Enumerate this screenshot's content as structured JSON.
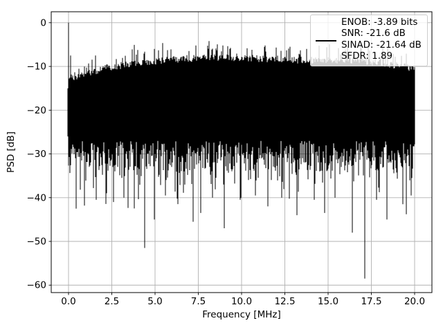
{
  "chart_data": {
    "type": "line",
    "title": "",
    "xlabel": "Frequency [MHz]",
    "ylabel": "PSD [dB]",
    "xlim": [
      -1,
      21
    ],
    "ylim": [
      -61.7,
      2.5
    ],
    "grid": true,
    "grid_color": "#b0b0b0",
    "frame_color": "#000000",
    "background_color": "#ffffff",
    "xticks": {
      "values": [
        0,
        2.5,
        5,
        7.5,
        10,
        12.5,
        15,
        17.5,
        20
      ],
      "labels": [
        "0.0",
        "2.5",
        "5.0",
        "7.5",
        "10.0",
        "12.5",
        "15.0",
        "17.5",
        "20.0"
      ]
    },
    "yticks": {
      "values": [
        0,
        -10,
        -20,
        -30,
        -40,
        -50,
        -60
      ],
      "labels": [
        "0",
        "−10",
        "−20",
        "−30",
        "−40",
        "−50",
        "−60"
      ]
    },
    "legend": {
      "position": "upper right",
      "handle_color": "#000000",
      "lines": [
        "ENOB: -3.89 bits",
        "SNR: -21.6 dB",
        "SINAD: -21.64 dB",
        "SFDR: 1.89"
      ]
    },
    "metrics": {
      "enob_bits": -3.89,
      "snr_db": -21.6,
      "sinad_db": -21.64,
      "sfdr": 1.89
    },
    "signal": {
      "name": "psd-noise-trace",
      "color": "#000000",
      "freq_range_mhz": [
        0,
        20
      ],
      "dc_peak": {
        "freq": 0,
        "psd_db": 0
      },
      "dc_shoulder": {
        "freq": 0.08,
        "psd_db": -7.5
      },
      "random_seed": 1337,
      "top_envelope_points": [
        [
          0,
          -13.5
        ],
        [
          0.5,
          -13.0
        ],
        [
          1,
          -12.5
        ],
        [
          2,
          -11.3
        ],
        [
          3,
          -10.6
        ],
        [
          4,
          -10.0
        ],
        [
          5,
          -9.6
        ],
        [
          6,
          -9.2
        ],
        [
          7,
          -9.0
        ],
        [
          8,
          -8.8
        ],
        [
          9,
          -8.8
        ],
        [
          10,
          -8.9
        ],
        [
          11,
          -9.0
        ],
        [
          12,
          -9.1
        ],
        [
          13,
          -9.3
        ],
        [
          14,
          -9.4
        ],
        [
          15,
          -9.4
        ],
        [
          16,
          -9.3
        ],
        [
          17,
          -9.6
        ],
        [
          18,
          -10.0
        ],
        [
          19,
          -10.6
        ],
        [
          20,
          -11.2
        ]
      ],
      "dense_floor_db_range": [
        -27,
        -34
      ],
      "spike_peaks": [
        [
          5.2,
          -6.3
        ],
        [
          5.9,
          -6.1
        ],
        [
          7.35,
          -5.2
        ],
        [
          8.1,
          -4.2
        ],
        [
          8.5,
          -5.9
        ],
        [
          9.3,
          -6.0
        ],
        [
          10.6,
          -6.2
        ],
        [
          11.4,
          -6.6
        ],
        [
          12.8,
          -5.5
        ],
        [
          13.4,
          -6.3
        ],
        [
          14.9,
          -5.6
        ],
        [
          15.6,
          -5.8
        ],
        [
          16.1,
          -5.3
        ],
        [
          16.9,
          -5.9
        ],
        [
          18.2,
          -6.9
        ]
      ],
      "deep_dips": [
        [
          0.45,
          -42.5
        ],
        [
          0.9,
          -41.8
        ],
        [
          1.6,
          -40.5
        ],
        [
          2.2,
          -39.0
        ],
        [
          2.6,
          -41.0
        ],
        [
          3.2,
          -40.0
        ],
        [
          3.8,
          -39.5
        ],
        [
          4.4,
          -51.5
        ],
        [
          4.95,
          -45.0
        ],
        [
          5.6,
          -39.5
        ],
        [
          6.3,
          -40.5
        ],
        [
          7.2,
          -45.5
        ],
        [
          7.65,
          -43.5
        ],
        [
          8.3,
          -40.0
        ],
        [
          9.0,
          -47.0
        ],
        [
          9.9,
          -40.5
        ],
        [
          10.8,
          -39.5
        ],
        [
          11.5,
          -42.0
        ],
        [
          12.3,
          -40.0
        ],
        [
          13.2,
          -44.0
        ],
        [
          14.2,
          -40.5
        ],
        [
          14.8,
          -43.5
        ],
        [
          15.4,
          -40.0
        ],
        [
          16.4,
          -48.0
        ],
        [
          17.1,
          -58.5
        ],
        [
          17.8,
          -40.5
        ],
        [
          18.4,
          -45.0
        ],
        [
          19.3,
          -41.5
        ],
        [
          19.8,
          -39.5
        ]
      ]
    }
  }
}
